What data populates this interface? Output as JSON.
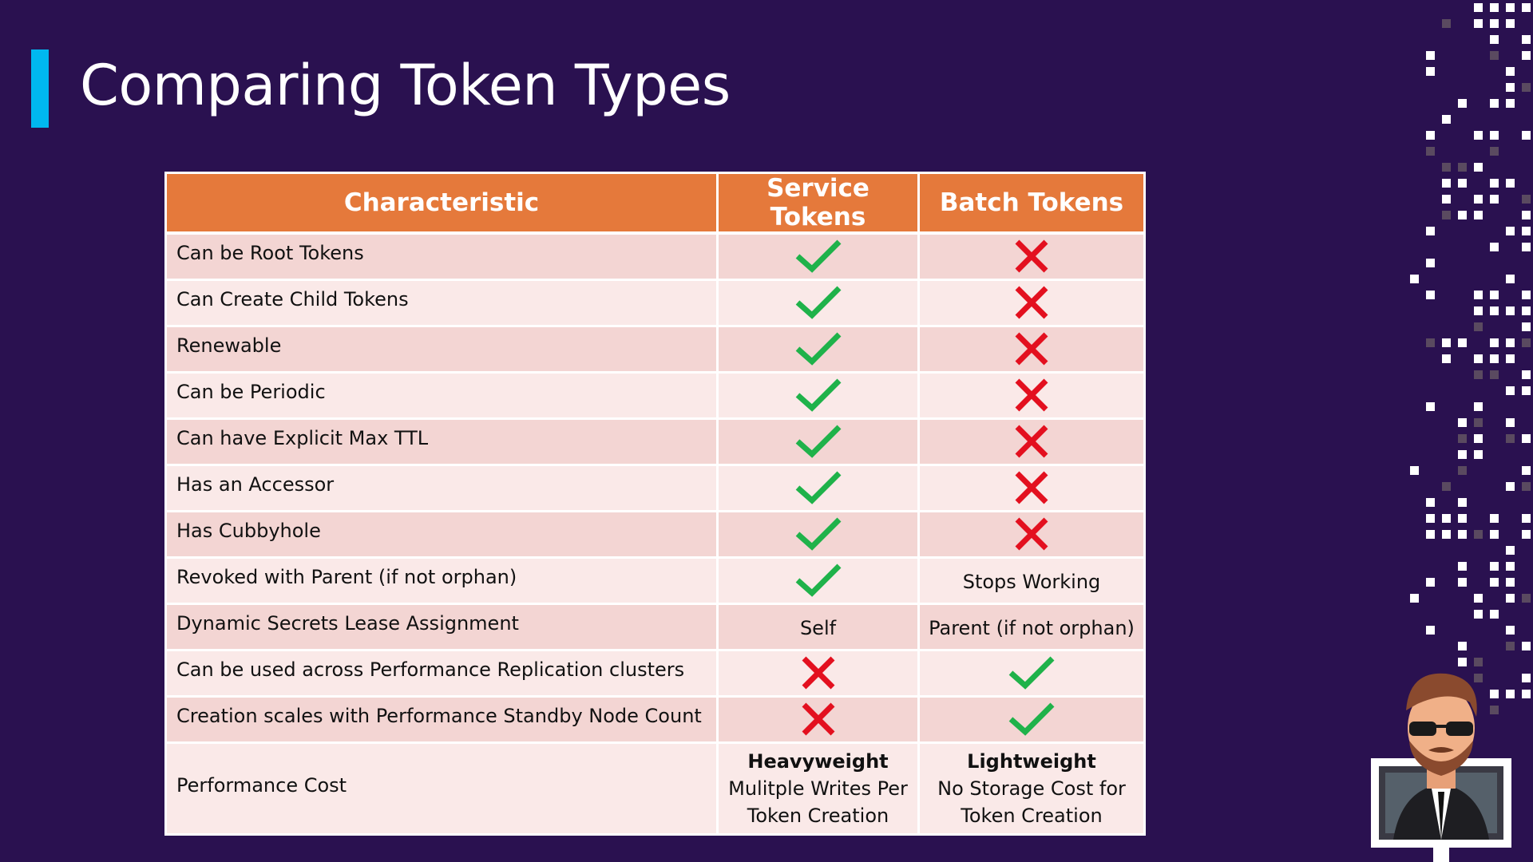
{
  "slide": {
    "title": "Comparing Token Types"
  },
  "table": {
    "headers": [
      "Characteristic",
      "Service Tokens",
      "Batch Tokens"
    ],
    "rows": [
      {
        "label": "Can be Root Tokens",
        "service": "check",
        "batch": "cross"
      },
      {
        "label": "Can Create Child Tokens",
        "service": "check",
        "batch": "cross"
      },
      {
        "label": "Renewable",
        "service": "check",
        "batch": "cross"
      },
      {
        "label": "Can be Periodic",
        "service": "check",
        "batch": "cross"
      },
      {
        "label": "Can have Explicit Max TTL",
        "service": "check",
        "batch": "cross"
      },
      {
        "label": "Has an Accessor",
        "service": "check",
        "batch": "cross"
      },
      {
        "label": "Has Cubbyhole",
        "service": "check",
        "batch": "cross"
      },
      {
        "label": "Revoked with Parent (if not orphan)",
        "service": "check",
        "batch_text": "Stops Working"
      },
      {
        "label": "Dynamic Secrets Lease Assignment",
        "service_text": "Self",
        "batch_text": "Parent (if not orphan)"
      },
      {
        "label": "Can be used across Performance Replication clusters",
        "service": "cross",
        "batch": "check"
      },
      {
        "label": "Creation scales with Performance Standby Node Count",
        "service": "cross",
        "batch": "check"
      }
    ],
    "cost": {
      "label": "Performance Cost",
      "service_bold": "Heavyweight",
      "service_line1": "Mulitple Writes Per",
      "service_line2": "Token Creation",
      "batch_bold": "Lightweight",
      "batch_line1": "No Storage Cost for",
      "batch_line2": "Token Creation"
    }
  },
  "colors": {
    "background": "#2a1150",
    "accent_bar": "#00b8f0",
    "header": "#e5793b",
    "row_dark": "#f3d5d3",
    "row_light": "#fae9e8",
    "check": "#1fb24a",
    "cross": "#e3101f"
  },
  "icons": {
    "check": "check-icon",
    "cross": "cross-icon"
  }
}
